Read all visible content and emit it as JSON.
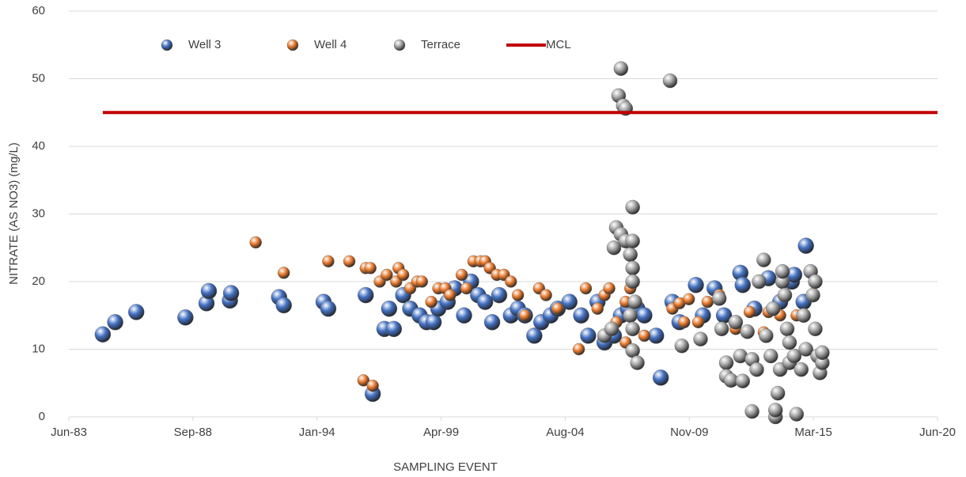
{
  "chart_data": {
    "type": "scatter",
    "x_label": "SAMPLING EVENT",
    "y_label": "NITRATE (AS NO3) (mg/L)",
    "xlim": [
      1983.42,
      2020.52
    ],
    "xticks": [
      {
        "value": 1983.42,
        "label": "Jun-83"
      },
      {
        "value": 1988.72,
        "label": "Sep-88"
      },
      {
        "value": 1994.02,
        "label": "Jan-94"
      },
      {
        "value": 1999.32,
        "label": "Apr-99"
      },
      {
        "value": 2004.62,
        "label": "Aug-04"
      },
      {
        "value": 2009.92,
        "label": "Nov-09"
      },
      {
        "value": 2015.22,
        "label": "Mar-15"
      },
      {
        "value": 2020.52,
        "label": "Jun-20"
      }
    ],
    "ylim": [
      0,
      60
    ],
    "yticks": [
      0,
      10,
      20,
      30,
      40,
      50,
      60
    ],
    "grid": true,
    "legend": "top",
    "series": [
      {
        "name": "Well 3",
        "color": "#4472c4",
        "type": "scatter",
        "x": [
          1984.87,
          1985.4,
          1986.3,
          1988.4,
          1989.3,
          1989.4,
          1990.3,
          1990.35,
          1992.4,
          1992.6,
          1994.3,
          1994.5,
          1996.1,
          1996.4,
          1996.9,
          1997.3,
          1997.1,
          1997.7,
          1998.0,
          1998.4,
          1998.7,
          1999.0,
          1999.2,
          1999.6,
          1999.9,
          2000.3,
          2000.6,
          2000.9,
          2001.2,
          2001.5,
          2001.8,
          2002.3,
          2002.6,
          2002.9,
          2003.3,
          2003.6,
          2004.0,
          2004.3,
          2004.8,
          2005.3,
          2005.6,
          2006.0,
          2006.3,
          2006.7,
          2007.0,
          2007.3,
          2007.7,
          2008.0,
          2008.5,
          2008.7,
          2009.2,
          2009.5,
          2010.2,
          2010.5,
          2011.0,
          2011.4,
          2012.1,
          2012.2,
          2012.7,
          2013.3,
          2013.8,
          2014.3,
          2014.4,
          2014.9,
          2014.8
        ],
        "values": [
          12.2,
          14,
          15.5,
          14.7,
          16.8,
          18.6,
          17.2,
          18.3,
          17.7,
          16.5,
          17,
          16,
          18,
          3.4,
          13,
          13,
          16,
          18,
          16,
          15,
          14,
          14,
          16,
          17,
          19,
          15,
          20,
          18,
          17,
          14,
          18,
          15,
          16,
          15,
          12,
          14,
          15,
          16,
          17,
          15,
          12,
          17,
          11,
          12,
          15,
          16,
          16,
          15,
          12,
          5.8,
          17,
          14,
          19.5,
          15,
          19,
          15,
          21.3,
          19.5,
          16,
          20.5,
          17,
          20,
          21,
          25.3,
          17
        ]
      },
      {
        "name": "Well 4",
        "color": "#ed7d31",
        "type": "scatter",
        "x": [
          1991.4,
          1992.6,
          1994.5,
          1995.4,
          1996.1,
          1996.3,
          1996.0,
          1996.4,
          1996.7,
          1997.0,
          1997.4,
          1997.5,
          1997.7,
          1998.0,
          1998.3,
          1998.5,
          1998.9,
          1999.2,
          1999.5,
          1999.7,
          2000.2,
          2000.4,
          2000.7,
          2001.0,
          2001.2,
          2001.4,
          2001.7,
          2002.0,
          2002.3,
          2002.6,
          2002.9,
          2003.5,
          2003.8,
          2004.3,
          2005.2,
          2005.5,
          2006.0,
          2006.3,
          2006.5,
          2006.8,
          2007.2,
          2007.4,
          2007.2,
          2008.0,
          2009.2,
          2009.5,
          2009.7,
          2009.9,
          2010.3,
          2010.7,
          2011.2,
          2011.9,
          2012.5,
          2013.1,
          2013.3,
          2013.8,
          2014.5
        ],
        "values": [
          25.8,
          21.3,
          23,
          23,
          22,
          22,
          5.4,
          4.6,
          20,
          21,
          20,
          22,
          21,
          19,
          20,
          20,
          17,
          19,
          19,
          18,
          21,
          19,
          23,
          23,
          23,
          22,
          21,
          21,
          20,
          18,
          15,
          19,
          18,
          16,
          10,
          19,
          16,
          18,
          19,
          14,
          17,
          19,
          11,
          12,
          16,
          16.8,
          14,
          17.4,
          14,
          17,
          18,
          13,
          15.5,
          12.5,
          15.5,
          15,
          15
        ]
      },
      {
        "name": "Terrace",
        "color": "#a5a5a5",
        "type": "scatter",
        "x": [
          2007.0,
          2006.9,
          2007.1,
          2007.2,
          2009.1,
          2007.5,
          2006.8,
          2007.0,
          2007.2,
          2007.4,
          2007.5,
          2007.5,
          2007.6,
          2007.4,
          2007.5,
          2007.5,
          2007.7,
          2006.7,
          2006.3,
          2006.6,
          2007.5,
          2009.6,
          2010.4,
          2011.2,
          2011.3,
          2011.5,
          2011.5,
          2011.7,
          2011.9,
          2012.1,
          2012.2,
          2012.4,
          2012.6,
          2012.6,
          2012.8,
          2012.9,
          2013.1,
          2013.2,
          2013.4,
          2013.5,
          2013.6,
          2013.6,
          2013.7,
          2013.8,
          2013.9,
          2014.0,
          2014.1,
          2014.2,
          2014.2,
          2014.4,
          2014.5,
          2014.7,
          2014.8,
          2014.9,
          2015.1,
          2015.2,
          2015.3,
          2015.3,
          2015.4,
          2015.5,
          2015.6,
          2015.6,
          2013.9
        ],
        "values": [
          51.5,
          47.5,
          46,
          45.6,
          49.7,
          31,
          28,
          27,
          26,
          24,
          22,
          20,
          17,
          15,
          13,
          9.8,
          8,
          25,
          12,
          13,
          26,
          10.5,
          11.5,
          17.5,
          13,
          8,
          6,
          5.4,
          14,
          9,
          5.3,
          12.6,
          8.5,
          0.8,
          7,
          20,
          23.2,
          12,
          9,
          16,
          0,
          1,
          3.5,
          7,
          20,
          18,
          13,
          8,
          11,
          9,
          0.4,
          7,
          15,
          10,
          21.5,
          18,
          20,
          13,
          9,
          6.5,
          8,
          9.5,
          21.5
        ]
      },
      {
        "name": "MCL",
        "color": "#c00000",
        "type": "line",
        "x": [
          1984.87,
          2020.52
        ],
        "values": [
          45,
          45
        ]
      }
    ]
  }
}
